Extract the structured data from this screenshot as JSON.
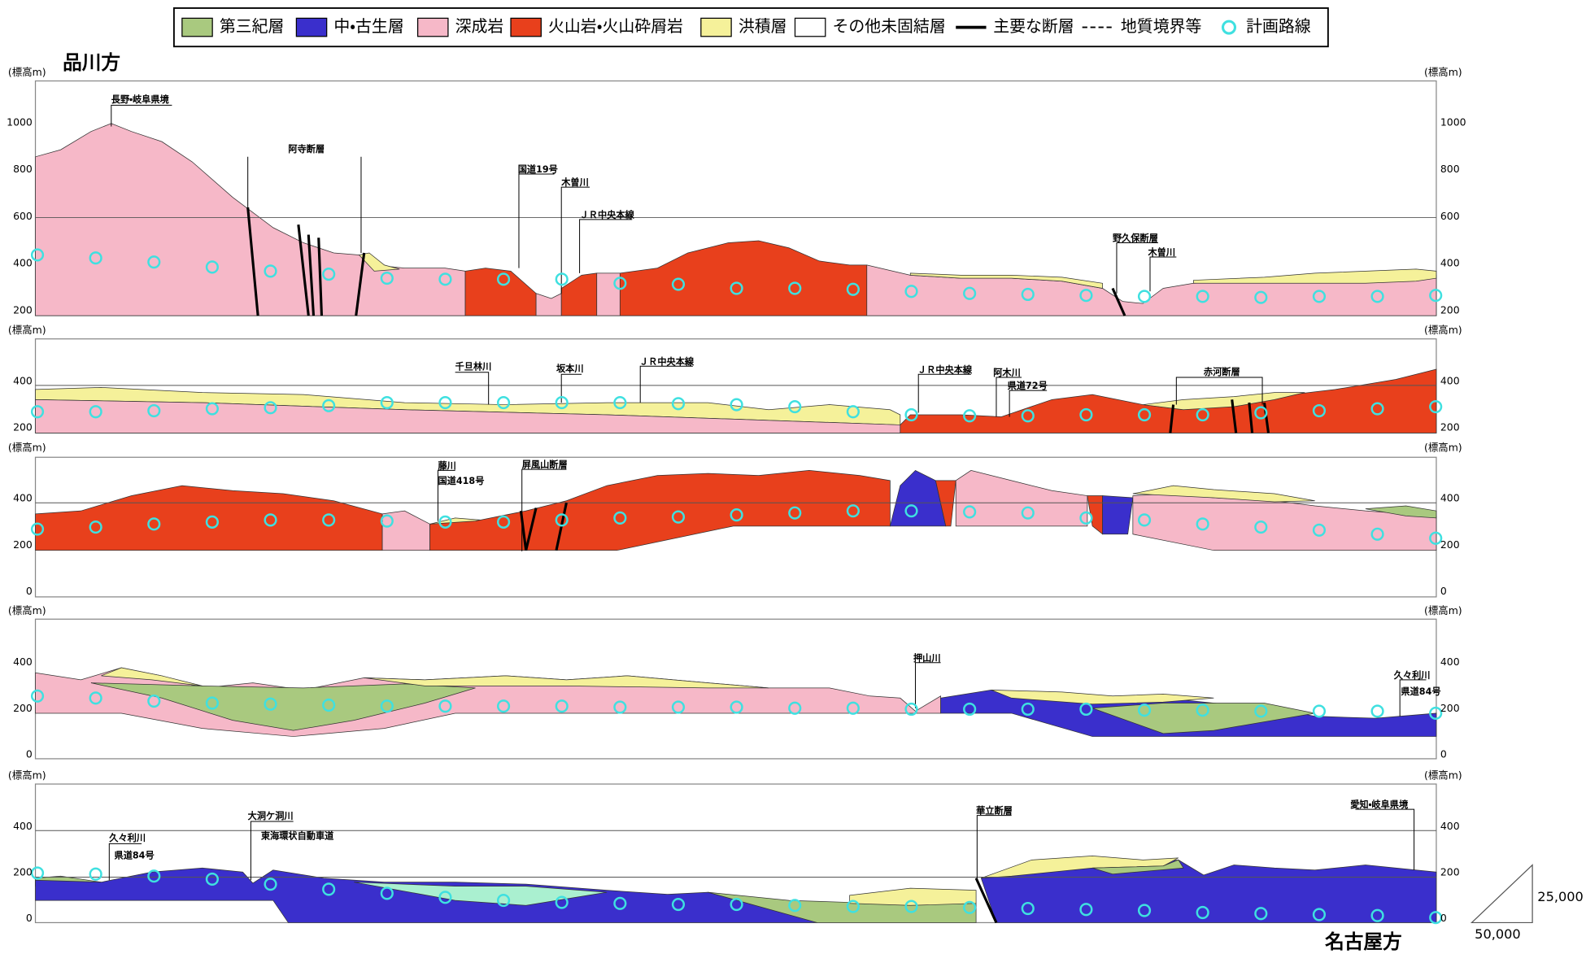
{
  "legend": {
    "items": [
      "第三紀層",
      "中・古生層",
      "深成岩",
      "火山岩・火山砕屑岩",
      "洪積層",
      "その他未固結層",
      "主要な断層",
      "地質境界等",
      "計画路線"
    ]
  },
  "directions": {
    "start": "品川方",
    "end": "名古屋方"
  },
  "axis_label": "(標高m)",
  "panels": [
    {
      "ticks": [
        "1000",
        "800",
        "600",
        "400",
        "200"
      ],
      "labels": [
        "長野・岐阜県境",
        "阿寺断層",
        "国道19号",
        "木曽川",
        "ＪＲ中央本線",
        "野久保断層",
        "木曽川"
      ]
    },
    {
      "ticks": [
        "400",
        "200"
      ],
      "labels": [
        "千旦林川",
        "坂本川",
        "ＪＲ中央本線",
        "ＪＲ中央本線",
        "阿木川",
        "県道72号",
        "赤河断層"
      ]
    },
    {
      "ticks": [
        "400",
        "200",
        "0"
      ],
      "labels": [
        "藤川",
        "国道418号",
        "屏風山断層"
      ]
    },
    {
      "ticks": [
        "400",
        "200",
        "0"
      ],
      "labels": [
        "押山川",
        "久々利川",
        "県道84号"
      ]
    },
    {
      "ticks": [
        "400",
        "200",
        "0"
      ],
      "labels": [
        "久々利川",
        "県道84号",
        "大洞ケ洞川",
        "東海環状自動車道",
        "華立断層",
        "愛知・岐阜県境"
      ]
    }
  ],
  "scale": {
    "vertical": "25,000",
    "horizontal": "50,000"
  }
}
